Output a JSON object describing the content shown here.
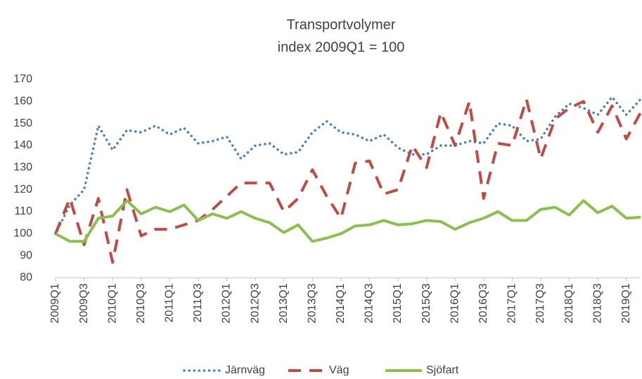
{
  "chart_data": {
    "type": "line",
    "title": "Transportvolymer",
    "subtitle": "index 2009Q1 = 100",
    "categories": [
      "2009Q1",
      null,
      "2009Q3",
      null,
      "2010Q1",
      null,
      "2010Q3",
      null,
      "2011Q1",
      null,
      "2011Q3",
      null,
      "2012Q1",
      null,
      "2012Q3",
      null,
      "2013Q1",
      null,
      "2013Q3",
      null,
      "2014Q1",
      null,
      "2014Q3",
      null,
      "2015Q1",
      null,
      "2015Q3",
      null,
      "2016Q1",
      null,
      "2016Q3",
      null,
      "2017Q1",
      null,
      "2017Q3",
      null,
      "2018Q1",
      null,
      "2018Q3",
      null,
      "2019Q1",
      null
    ],
    "series": [
      {
        "name": "Järnväg",
        "color": "#4a7ebb",
        "style": "dotted",
        "values": [
          100,
          113,
          120,
          149,
          138,
          147,
          146,
          149,
          145,
          148,
          141,
          142,
          144,
          134,
          140,
          141,
          136,
          137,
          146,
          151,
          146,
          145,
          142,
          145,
          139,
          136,
          136,
          140,
          140,
          142,
          141,
          150,
          149,
          142,
          143,
          153,
          159,
          157,
          154,
          162,
          154,
          161
        ]
      },
      {
        "name": "Väg",
        "color": "#be4b48",
        "style": "dashed",
        "values": [
          100,
          116,
          95,
          116,
          87,
          120,
          99,
          102,
          102,
          104,
          106,
          111,
          117,
          123,
          123,
          123,
          110,
          116,
          129,
          117,
          107,
          132,
          133,
          118,
          120,
          140,
          130,
          155,
          140,
          160,
          116,
          141,
          140,
          161,
          134,
          152,
          157,
          160,
          146,
          158,
          143,
          155
        ]
      },
      {
        "name": "Sjöfart",
        "color": "#8cbf4f",
        "style": "solid",
        "values": [
          100,
          96.5,
          96.5,
          107,
          108,
          115,
          109,
          112,
          110,
          113,
          106,
          109,
          107,
          110,
          107,
          105,
          100.5,
          104,
          96.5,
          98,
          100,
          103.5,
          104,
          106,
          104,
          104.5,
          106,
          105.5,
          102,
          105,
          107,
          110,
          106,
          106,
          111,
          112,
          108.5,
          115,
          109.5,
          112.5,
          107,
          107.5
        ]
      }
    ],
    "ylim": [
      80,
      170
    ],
    "yticks": [
      80,
      90,
      100,
      110,
      120,
      130,
      140,
      150,
      160,
      170
    ],
    "grid": false,
    "legend": "bottom"
  }
}
